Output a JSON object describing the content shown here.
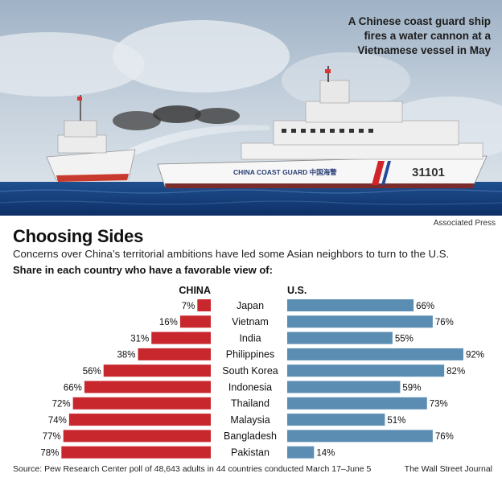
{
  "photo": {
    "caption": "A Chinese coast guard ship\nfires a water cannon at a\nVietnamese vessel in May",
    "hull_text": "CHINA COAST GUARD 中国海警",
    "hull_number": "31101",
    "credit": "Associated Press"
  },
  "headline": "Choosing Sides",
  "dek": "Concerns over China’s territorial ambitions have led some Asian neighbors to turn to the U.S.",
  "subhead": "Share in each country who have a favorable view of:",
  "chart_data": {
    "type": "bar",
    "categories": [
      "Japan",
      "Vietnam",
      "India",
      "Philippines",
      "South Korea",
      "Indonesia",
      "Thailand",
      "Malaysia",
      "Bangladesh",
      "Pakistan"
    ],
    "series": [
      {
        "name": "CHINA",
        "values": [
          7,
          16,
          31,
          38,
          56,
          66,
          72,
          74,
          77,
          78
        ],
        "color": "#c8282d"
      },
      {
        "name": "U.S.",
        "values": [
          66,
          76,
          55,
          92,
          82,
          59,
          73,
          51,
          76,
          14
        ],
        "color": "#5b8db3"
      }
    ],
    "value_suffix": "%",
    "xlim": [
      0,
      100
    ]
  },
  "source": "Source: Pew Research Center poll of 48,643 adults in 44 countries conducted March 17–June 5",
  "brand": "The Wall Street Journal"
}
